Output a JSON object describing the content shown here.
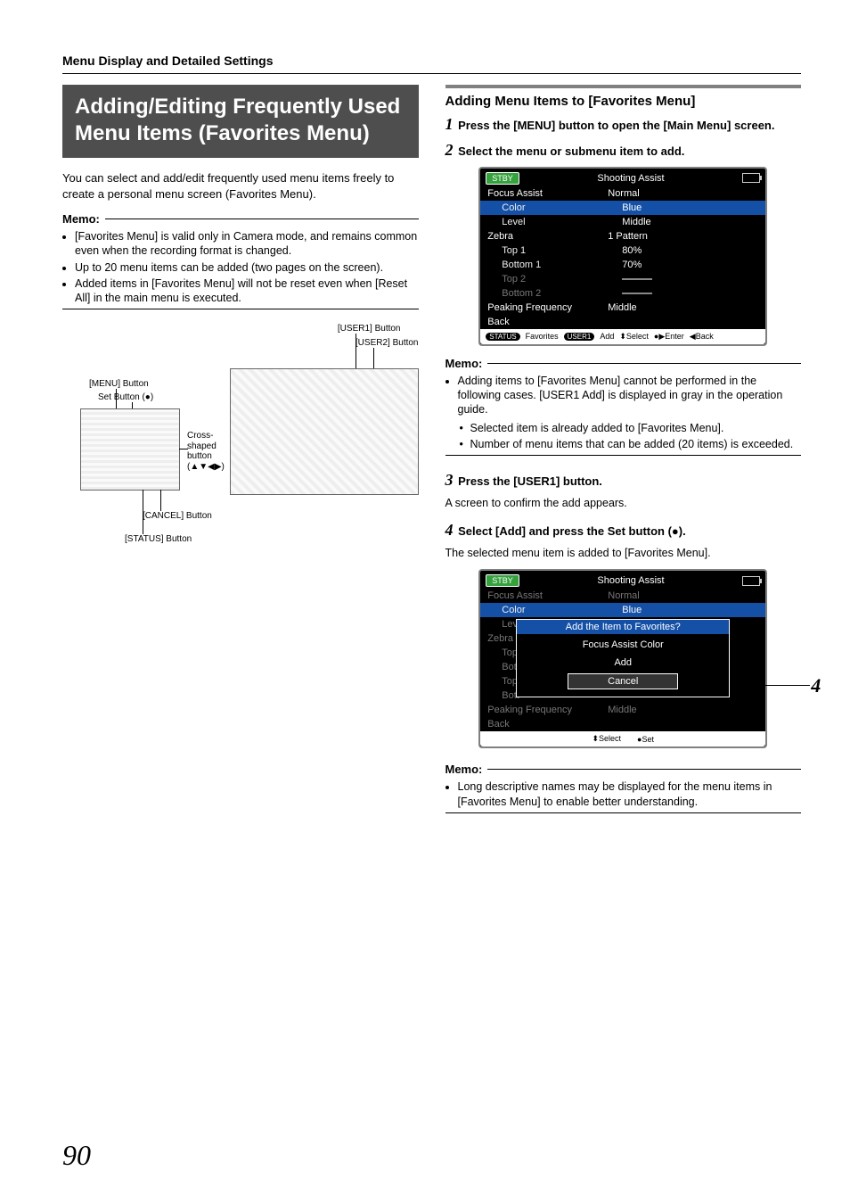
{
  "breadcrumb": "Menu Display and Detailed Settings",
  "title": "Adding/Editing Frequently Used Menu Items (Favorites Menu)",
  "intro": "You can select and add/edit frequently used menu items freely to create a personal menu screen (Favorites Menu).",
  "memo_label": "Memo:",
  "memo1": {
    "items": [
      "[Favorites Menu] is valid only in Camera mode, and remains common even when the recording format is changed.",
      "Up to 20 menu items can be added (two pages on the screen).",
      "Added items in [Favorites Menu] will not be reset even when [Reset All] in the main menu is executed."
    ]
  },
  "figure_labels": {
    "user1": "[USER1] Button",
    "user2": "[USER2] Button",
    "menu": "[MENU] Button",
    "set": "Set Button (●)",
    "cross": "Cross-shaped button (▲▼◀▶)",
    "cancel": "[CANCEL] Button",
    "status": "[STATUS] Button"
  },
  "right": {
    "section_title": "Adding Menu Items to [Favorites Menu]",
    "step1": "Press the [MENU] button to open the [Main Menu] screen.",
    "step2": "Select the menu or submenu item to add.",
    "step3": "Press the [USER1] button.",
    "step3_body": "A screen to confirm the add appears.",
    "step4": "Select [Add] and press the Set button (●).",
    "step4_body": "The selected menu item is added to [Favorites Menu].",
    "memo2": {
      "lead": "Adding items to [Favorites Menu] cannot be performed in the following cases. [USER1 Add] is displayed in gray in the operation guide.",
      "sub": [
        "Selected item is already added to [Favorites Menu].",
        "Number of menu items that can be added (20 items) is exceeded."
      ]
    },
    "memo3": {
      "items": [
        "Long descriptive names may be displayed for the menu items in [Favorites Menu] to enable better understanding."
      ]
    }
  },
  "osd1": {
    "stby": "STBY",
    "title": "Shooting Assist",
    "rows": [
      {
        "lbl": "Focus Assist",
        "val": "Normal",
        "cls": "header-row"
      },
      {
        "lbl": "Color",
        "val": "Blue",
        "cls": "sub hl"
      },
      {
        "lbl": "Level",
        "val": "Middle",
        "cls": "sub"
      },
      {
        "lbl": "Zebra",
        "val": "1 Pattern",
        "cls": "header-row"
      },
      {
        "lbl": "Top 1",
        "val": "80%",
        "cls": "sub"
      },
      {
        "lbl": "Bottom 1",
        "val": "70%",
        "cls": "sub"
      },
      {
        "lbl": "Top 2",
        "val": "",
        "cls": "sub dim",
        "dash": true
      },
      {
        "lbl": "Bottom 2",
        "val": "",
        "cls": "sub dim",
        "dash": true
      },
      {
        "lbl": "Peaking Frequency",
        "val": "Middle",
        "cls": "header-row"
      },
      {
        "lbl": "Back",
        "val": "",
        "cls": "header-row"
      }
    ],
    "footer": {
      "p1": "STATUS",
      "t1": "Favorites",
      "p2": "USER1",
      "t2": "Add",
      "t3": "⬍Select",
      "t4": "●▶Enter",
      "t5": "◀Back"
    }
  },
  "osd2": {
    "stby": "STBY",
    "title": "Shooting Assist",
    "rows": [
      {
        "lbl": "Focus Assist",
        "val": "Normal",
        "cls": "header-row dim"
      },
      {
        "lbl": "Color",
        "val": "Blue",
        "cls": "sub hl"
      },
      {
        "lbl": "Level",
        "val": "",
        "cls": "sub dim"
      },
      {
        "lbl": "Zebra",
        "val": "",
        "cls": "header-row dim"
      },
      {
        "lbl": "Top",
        "val": "",
        "cls": "sub dim"
      },
      {
        "lbl": "Bott",
        "val": "",
        "cls": "sub dim"
      },
      {
        "lbl": "Top",
        "val": "",
        "cls": "sub dim"
      },
      {
        "lbl": "Bott",
        "val": "",
        "cls": "sub dim"
      },
      {
        "lbl": "Peaking Frequency",
        "val": "Middle",
        "cls": "header-row dim"
      },
      {
        "lbl": "Back",
        "val": "",
        "cls": "header-row dim"
      }
    ],
    "dialog": {
      "title": "Add the Item to Favorites?",
      "item": "Focus Assist Color",
      "add": "Add",
      "cancel": "Cancel"
    },
    "footer": {
      "t3": "⬍Select",
      "t4": "●Set"
    },
    "callout": "4"
  },
  "pagenum": "90"
}
